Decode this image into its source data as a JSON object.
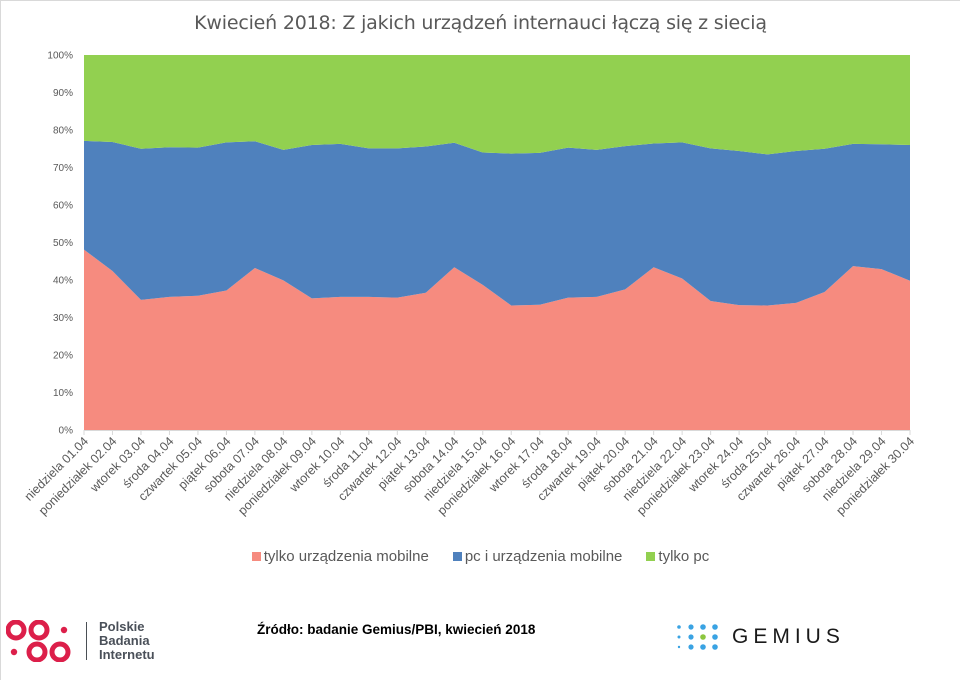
{
  "title": "Kwiecień 2018: Z jakich urządzeń internauci łączą się z siecią",
  "chart_data": {
    "type": "area",
    "stacked": "percent",
    "title": "Kwiecień 2018: Z jakich urządzeń internauci łączą się z siecią",
    "xlabel": "",
    "ylabel": "",
    "ylim": [
      0,
      100
    ],
    "yticks": [
      "0%",
      "10%",
      "20%",
      "30%",
      "40%",
      "50%",
      "60%",
      "70%",
      "80%",
      "90%",
      "100%"
    ],
    "grid": false,
    "legend_position": "bottom",
    "categories": [
      "niedziela 01.04",
      "poniedziałek 02.04",
      "wtorek 03.04",
      "środa 04.04",
      "czwartek 05.04",
      "piątek 06.04",
      "sobota 07.04",
      "niedziela 08.04",
      "poniedziałek 09.04",
      "wtorek 10.04",
      "środa 11.04",
      "czwartek 12.04",
      "piątek 13.04",
      "sobota 14.04",
      "niedziela 15.04",
      "poniedziałek 16.04",
      "wtorek 17.04",
      "środa 18.04",
      "czwartek 19.04",
      "piątek 20.04",
      "sobota 21.04",
      "niedziela 22.04",
      "poniedziałek 23.04",
      "wtorek 24.04",
      "środa 25.04",
      "czwartek 26.04",
      "piątek 27.04",
      "sobota 28.04",
      "niedziela 29.04",
      "poniedziałek 30.04"
    ],
    "series": [
      {
        "name": "tylko urządzenia mobilne",
        "color": "#f68b7f",
        "values": [
          48.1,
          42.4,
          34.7,
          35.5,
          35.8,
          37.2,
          43.2,
          39.9,
          35.1,
          35.5,
          35.5,
          35.3,
          36.6,
          43.4,
          38.7,
          33.2,
          33.4,
          35.3,
          35.5,
          37.5,
          43.4,
          40.4,
          34.4,
          33.3,
          33.2,
          33.9,
          36.8,
          43.7,
          42.9,
          39.8
        ]
      },
      {
        "name": "pc i urządzenia mobilne",
        "color": "#4f81bd",
        "values": [
          29.0,
          34.4,
          40.3,
          39.9,
          39.5,
          39.5,
          33.8,
          34.8,
          40.9,
          40.8,
          39.6,
          39.8,
          39.0,
          33.2,
          35.3,
          40.5,
          40.5,
          40.0,
          39.2,
          38.2,
          33.0,
          36.3,
          40.7,
          41.1,
          40.3,
          40.5,
          38.2,
          32.6,
          33.3,
          36.2
        ]
      },
      {
        "name": "tylko pc",
        "color": "#92d050",
        "values": [
          22.9,
          23.2,
          25.0,
          24.6,
          24.7,
          23.3,
          23.0,
          25.3,
          24.0,
          23.7,
          24.9,
          24.9,
          24.4,
          23.4,
          26.0,
          26.3,
          26.1,
          24.7,
          25.3,
          24.3,
          23.6,
          23.3,
          24.9,
          25.6,
          26.5,
          25.6,
          25.0,
          23.7,
          23.8,
          24.0
        ]
      }
    ]
  },
  "legend": [
    {
      "label": "tylko urządzenia mobilne",
      "color": "#f68b7f"
    },
    {
      "label": "pc i urządzenia mobilne",
      "color": "#4f81bd"
    },
    {
      "label": "tylko pc",
      "color": "#92d050"
    }
  ],
  "footer": {
    "source": "Źródło: badanie Gemius/PBI, kwiecień 2018",
    "pbi_logo": {
      "lines": [
        "Polskie",
        "Badania",
        "Internetu"
      ],
      "color": "#dc1f4a",
      "icon": "pbi-dots-icon"
    },
    "gemius_logo": {
      "text": "GEMIUS",
      "dot_color": "#3aa3e3",
      "accent_dot_color": "#8cc63f",
      "icon": "gemius-dots-icon"
    }
  }
}
